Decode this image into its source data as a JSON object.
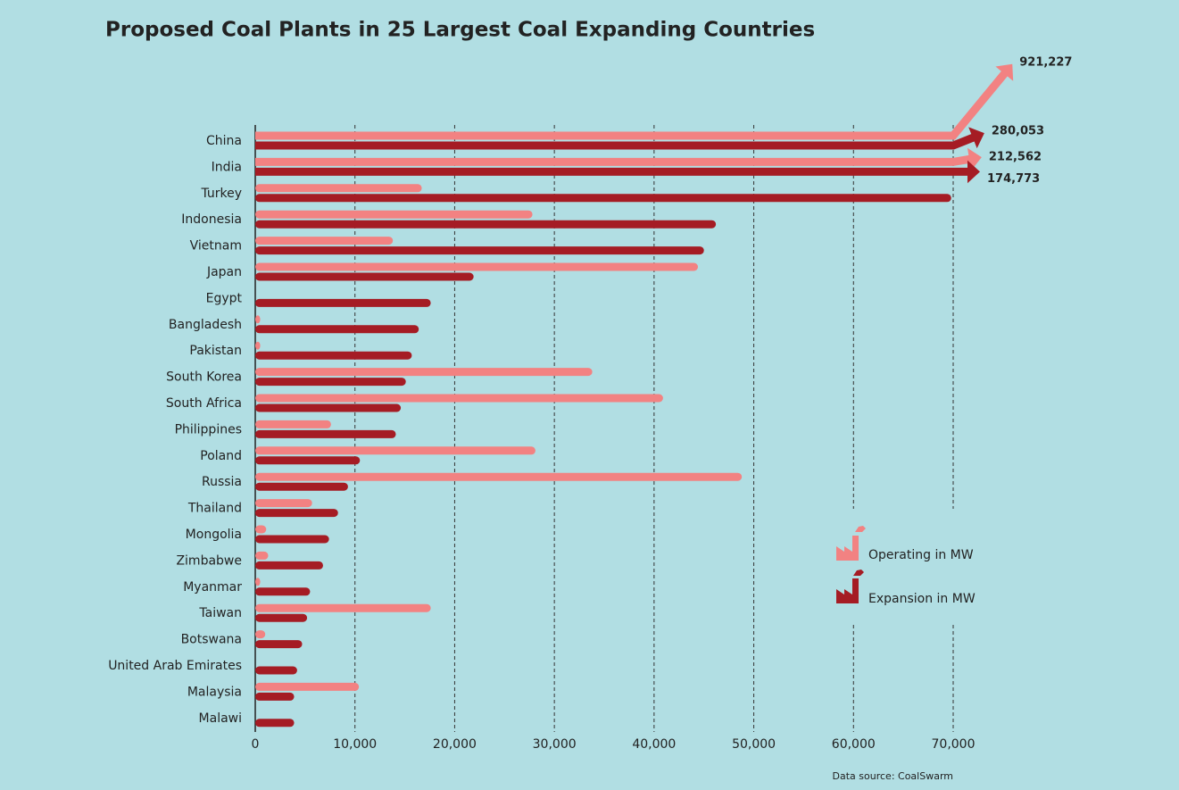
{
  "chart_data": {
    "type": "hbar",
    "title": "Proposed Coal Plants in 25 Largest Coal Expanding Countries",
    "source": "Data source: CoalSwarm",
    "categories": [
      "China",
      "India",
      "Turkey",
      "Indonesia",
      "Vietnam",
      "Japan",
      "Egypt",
      "Bangladesh",
      "Pakistan",
      "South Korea",
      "South Africa",
      "Philippines",
      "Poland",
      "Russia",
      "Thailand",
      "Mongolia",
      "Zimbabwe",
      "Myanmar",
      "Taiwan",
      "Botswana",
      "United Arab Emirates",
      "Malaysia",
      "Malawi"
    ],
    "series": [
      {
        "name": "Operating in MW",
        "color": "#f28282",
        "values": [
          921227,
          212562,
          16700,
          27800,
          13800,
          44400,
          0,
          500,
          500,
          33800,
          40900,
          7600,
          28100,
          48800,
          5700,
          1100,
          1300,
          500,
          17600,
          1000,
          0,
          10400,
          0
        ],
        "value_labels": [
          "921,227",
          "212,562",
          null,
          null,
          null,
          null,
          null,
          null,
          null,
          null,
          null,
          null,
          null,
          null,
          null,
          null,
          null,
          null,
          null,
          null,
          null,
          null,
          null
        ]
      },
      {
        "name": "Expansion in MW",
        "color": "#a51c24",
        "values": [
          280053,
          174773,
          69800,
          46200,
          45000,
          21900,
          17600,
          16400,
          15700,
          15100,
          14600,
          14100,
          10500,
          9300,
          8300,
          7400,
          6800,
          5500,
          5200,
          4700,
          4200,
          3900,
          3900
        ],
        "value_labels": [
          "280,053",
          "174,773",
          null,
          null,
          null,
          null,
          null,
          null,
          null,
          null,
          null,
          null,
          null,
          null,
          null,
          null,
          null,
          null,
          null,
          null,
          null,
          null,
          null
        ]
      }
    ],
    "xlim": [
      0,
      70000
    ],
    "xticks": [
      0,
      {
        "value": 10000,
        "label": "10,000"
      },
      {
        "value": 20000,
        "label": "20,000"
      },
      {
        "value": 30000,
        "label": "30,000"
      },
      {
        "value": 40000,
        "label": "40,000"
      },
      {
        "value": 50000,
        "label": "50,000"
      },
      {
        "value": 60000,
        "label": "60,000"
      },
      {
        "value": 70000,
        "label": "70,000"
      }
    ],
    "grid": true
  }
}
